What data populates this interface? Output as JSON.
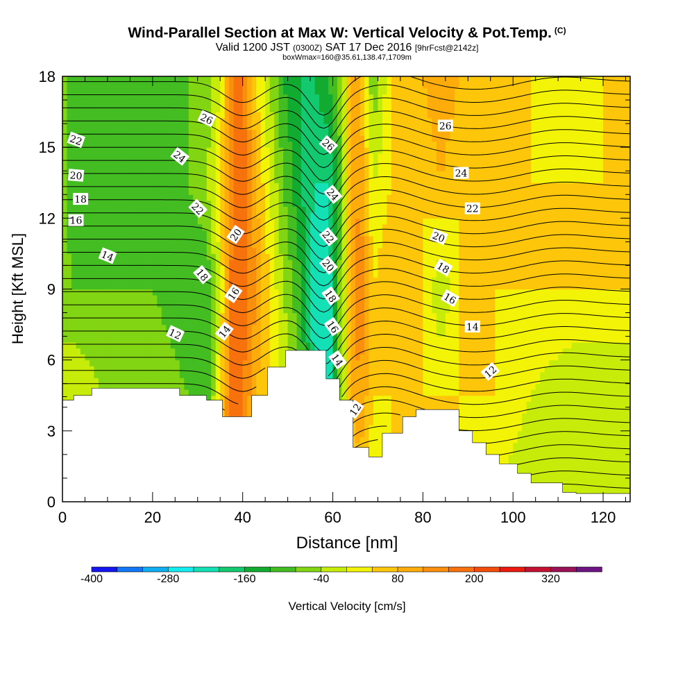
{
  "title": {
    "main": "Wind-Parallel Section at Max W: Vertical Velocity & Pot.Temp.",
    "copyright": "(C)",
    "valid_prefix": "Valid 1200 JST",
    "valid_utc": "(0300Z)",
    "valid_date": "SAT 17 Dec 2016",
    "forecast": "[9hrFcst@2142z]",
    "box": "boxWmax=160@35.61,138.47,1709m"
  },
  "colors": {
    "ramp": [
      "#1515ef",
      "#1177f5",
      "#12aef2",
      "#14edf0",
      "#14e0b6",
      "#12c96f",
      "#12ab31",
      "#43bd22",
      "#82d512",
      "#c7ec0a",
      "#f3f307",
      "#fec60b",
      "#fdac0b",
      "#f98f0d",
      "#f7710c",
      "#f24d0c",
      "#eb1a10",
      "#c31134",
      "#9a1156",
      "#6d1382"
    ],
    "terrain": "#ffffff"
  },
  "chart_data": {
    "type": "heatmap",
    "xlabel": "Distance [nm]",
    "ylabel": "Height [Kft MSL]",
    "xlim": [
      0,
      126
    ],
    "ylim": [
      0,
      18
    ],
    "x_ticks": [
      "0",
      "20",
      "40",
      "60",
      "80",
      "100",
      "120"
    ],
    "y_ticks": [
      "0",
      "3",
      "6",
      "9",
      "12",
      "15",
      "18"
    ],
    "colorbar": {
      "title": "Vertical Velocity [cm/s]",
      "tick_labels": [
        "-400",
        "-280",
        "-160",
        "-40",
        "80",
        "200",
        "320"
      ],
      "min": -400,
      "max": 400,
      "step": 40
    },
    "field_bands": [
      {
        "x": 0,
        "w": [
          -40,
          -40,
          -40,
          -40,
          -40
        ]
      },
      {
        "x": 2,
        "w": [
          40,
          0,
          -80,
          -120,
          -120
        ]
      },
      {
        "x": 9,
        "w": [
          40,
          -40,
          -80,
          -120,
          -120
        ]
      },
      {
        "x": 20,
        "w": [
          40,
          -40,
          -80,
          -120,
          -120
        ]
      },
      {
        "x": 28,
        "w": [
          0,
          -80,
          -120,
          -80,
          -80
        ]
      },
      {
        "x": 32,
        "w": [
          -120,
          -120,
          -120,
          -40,
          -80
        ]
      },
      {
        "x": 35,
        "w": [
          80,
          40,
          0,
          40,
          0
        ]
      },
      {
        "x": 38,
        "w": [
          160,
          200,
          200,
          160,
          160
        ]
      },
      {
        "x": 40,
        "w": [
          120,
          160,
          200,
          200,
          160
        ]
      },
      {
        "x": 43,
        "w": [
          80,
          80,
          120,
          80,
          40
        ]
      },
      {
        "x": 46,
        "w": [
          40,
          40,
          40,
          0,
          -40
        ]
      },
      {
        "x": 49,
        "w": [
          0,
          0,
          -40,
          -80,
          -120
        ]
      },
      {
        "x": 53,
        "w": [
          -40,
          -80,
          -120,
          -160,
          -160
        ]
      },
      {
        "x": 56,
        "w": [
          -120,
          -200,
          -240,
          -200,
          -160
        ]
      },
      {
        "x": 59,
        "w": [
          -160,
          -240,
          -240,
          -200,
          -120
        ]
      },
      {
        "x": 62,
        "w": [
          -80,
          -40,
          -40,
          -80,
          -40
        ]
      },
      {
        "x": 64,
        "w": [
          40,
          80,
          80,
          80,
          80
        ]
      },
      {
        "x": 66,
        "w": [
          40,
          120,
          160,
          120,
          80
        ]
      },
      {
        "x": 69,
        "w": [
          0,
          40,
          40,
          0,
          -80
        ]
      },
      {
        "x": 73,
        "w": [
          40,
          40,
          80,
          40,
          40
        ]
      },
      {
        "x": 80,
        "w": [
          40,
          40,
          40,
          40,
          80
        ]
      },
      {
        "x": 84,
        "w": [
          40,
          40,
          -40,
          80,
          120
        ]
      },
      {
        "x": 88,
        "w": [
          40,
          40,
          40,
          40,
          80
        ]
      },
      {
        "x": 96,
        "w": [
          0,
          40,
          40,
          40,
          40
        ]
      },
      {
        "x": 104,
        "w": [
          -40,
          0,
          40,
          40,
          40
        ]
      },
      {
        "x": 114,
        "w": [
          -40,
          -40,
          40,
          40,
          0
        ]
      },
      {
        "x": 120,
        "w": [
          -40,
          -40,
          40,
          40,
          40
        ]
      },
      {
        "x": 126,
        "w": [
          -40,
          -40,
          40,
          40,
          40
        ]
      }
    ],
    "terrain": [
      [
        0,
        4.3
      ],
      [
        2.5,
        4.5
      ],
      [
        6.5,
        4.8
      ],
      [
        26,
        4.5
      ],
      [
        32,
        4.3
      ],
      [
        35.5,
        3.6
      ],
      [
        42,
        4.5
      ],
      [
        45.5,
        5.7
      ],
      [
        49.5,
        6.4
      ],
      [
        58.5,
        5.2
      ],
      [
        61.5,
        4.3
      ],
      [
        64.5,
        2.3
      ],
      [
        68,
        1.9
      ],
      [
        71,
        2.9
      ],
      [
        75.5,
        3.6
      ],
      [
        78.5,
        3.9
      ],
      [
        88,
        3.0
      ],
      [
        91,
        2.5
      ],
      [
        94,
        2.0
      ],
      [
        97,
        1.6
      ],
      [
        101,
        1.2
      ],
      [
        104,
        0.8
      ],
      [
        111,
        0.4
      ],
      [
        114,
        0.35
      ],
      [
        126,
        0.35
      ]
    ],
    "isentropes": {
      "levels": [
        11,
        11.5,
        12,
        12.5,
        13,
        13.5,
        14,
        14.5,
        15,
        15.5,
        16,
        16.5,
        17,
        17.5,
        18,
        18.5,
        19,
        19.5,
        20,
        20.5,
        21,
        21.5,
        22,
        22.5,
        23,
        23.5,
        24,
        24.5,
        25,
        25.5,
        26,
        26.5,
        27
      ],
      "labels": [
        {
          "text": "26",
          "x": 32,
          "y": 16.2,
          "angle": 25
        },
        {
          "text": "22",
          "x": 3,
          "y": 15.3,
          "angle": 20
        },
        {
          "text": "24",
          "x": 26,
          "y": 14.6,
          "angle": 38
        },
        {
          "text": "20",
          "x": 3,
          "y": 13.8,
          "angle": 5
        },
        {
          "text": "18",
          "x": 4,
          "y": 12.8,
          "angle": 0
        },
        {
          "text": "16",
          "x": 3,
          "y": 11.9,
          "angle": 0
        },
        {
          "text": "22",
          "x": 30,
          "y": 12.4,
          "angle": 45
        },
        {
          "text": "20",
          "x": 38.5,
          "y": 11.3,
          "angle": -55
        },
        {
          "text": "14",
          "x": 10,
          "y": 10.4,
          "angle": 22
        },
        {
          "text": "18",
          "x": 31,
          "y": 9.6,
          "angle": 50
        },
        {
          "text": "16",
          "x": 38,
          "y": 8.8,
          "angle": -55
        },
        {
          "text": "14",
          "x": 36,
          "y": 7.2,
          "angle": -52
        },
        {
          "text": "12",
          "x": 25,
          "y": 7.1,
          "angle": 25
        },
        {
          "text": "26",
          "x": 59,
          "y": 15.1,
          "angle": 42
        },
        {
          "text": "24",
          "x": 60,
          "y": 13.0,
          "angle": 50
        },
        {
          "text": "22",
          "x": 59,
          "y": 11.2,
          "angle": 50
        },
        {
          "text": "20",
          "x": 59,
          "y": 10.0,
          "angle": 50
        },
        {
          "text": "18",
          "x": 59.5,
          "y": 8.7,
          "angle": 55
        },
        {
          "text": "16",
          "x": 60,
          "y": 7.4,
          "angle": 55
        },
        {
          "text": "14",
          "x": 61,
          "y": 6.0,
          "angle": 55
        },
        {
          "text": "12",
          "x": 65,
          "y": 3.9,
          "angle": -55
        },
        {
          "text": "26",
          "x": 85,
          "y": 15.9,
          "angle": 0
        },
        {
          "text": "24",
          "x": 88.5,
          "y": 13.9,
          "angle": 0
        },
        {
          "text": "22",
          "x": 91,
          "y": 12.4,
          "angle": 0
        },
        {
          "text": "20",
          "x": 83.5,
          "y": 11.2,
          "angle": 22
        },
        {
          "text": "18",
          "x": 84.5,
          "y": 9.9,
          "angle": 30
        },
        {
          "text": "16",
          "x": 86,
          "y": 8.6,
          "angle": 30
        },
        {
          "text": "14",
          "x": 91,
          "y": 7.4,
          "angle": 0
        },
        {
          "text": "12",
          "x": 95,
          "y": 5.5,
          "angle": -40
        }
      ]
    }
  }
}
